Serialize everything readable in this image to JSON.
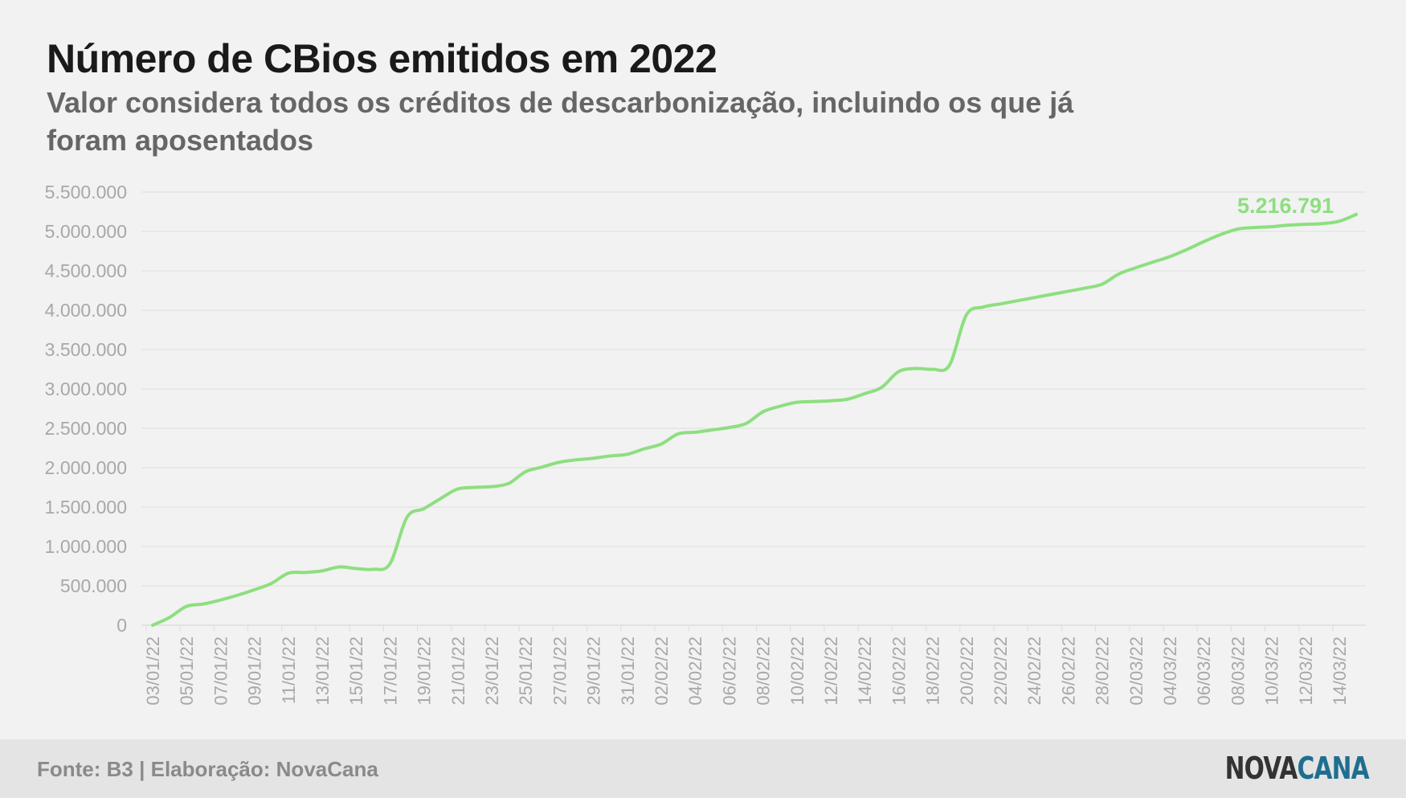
{
  "title": "Número de CBios emitidos em 2022",
  "subtitle": "Valor considera todos os créditos de descarbonização, incluindo os que já foram aposentados",
  "footer": {
    "source": "Fonte: B3 | Elaboração: NovaCana",
    "logo_part1": "NOVA",
    "logo_part2": "CANA"
  },
  "colors": {
    "line": "#8ddf7f",
    "grid": "#dedede",
    "axis_text": "#a8a8a8",
    "logo_dark": "#333333",
    "logo_accent": "#1e6f8f"
  },
  "chart_data": {
    "type": "line",
    "title": "Número de CBios emitidos em 2022",
    "ylim": [
      0,
      5500000
    ],
    "yticks": [
      0,
      500000,
      1000000,
      1500000,
      2000000,
      2500000,
      3000000,
      3500000,
      4000000,
      4500000,
      5000000,
      5500000
    ],
    "ytick_labels": [
      "0",
      "500.000",
      "1.000.000",
      "1.500.000",
      "2.000.000",
      "2.500.000",
      "3.000.000",
      "3.500.000",
      "4.000.000",
      "4.500.000",
      "5.000.000",
      "5.500.000"
    ],
    "xtick_labels": [
      "03/01/22",
      "05/01/22",
      "07/01/22",
      "09/01/22",
      "11/01/22",
      "13/01/22",
      "15/01/22",
      "17/01/22",
      "19/01/22",
      "21/01/22",
      "23/01/22",
      "25/01/22",
      "27/01/22",
      "29/01/22",
      "31/01/22",
      "02/02/22",
      "04/02/22",
      "06/02/22",
      "08/02/22",
      "10/02/22",
      "12/02/22",
      "14/02/22",
      "16/02/22",
      "18/02/22",
      "20/02/22",
      "22/02/22",
      "24/02/22",
      "26/02/22",
      "28/02/22",
      "02/03/22",
      "04/03/22",
      "06/03/22",
      "08/03/22",
      "10/03/22",
      "12/03/22",
      "14/03/22"
    ],
    "x": [
      "03/01/22",
      "04/01/22",
      "05/01/22",
      "06/01/22",
      "07/01/22",
      "08/01/22",
      "09/01/22",
      "10/01/22",
      "11/01/22",
      "12/01/22",
      "13/01/22",
      "14/01/22",
      "15/01/22",
      "16/01/22",
      "17/01/22",
      "18/01/22",
      "19/01/22",
      "20/01/22",
      "21/01/22",
      "22/01/22",
      "23/01/22",
      "24/01/22",
      "25/01/22",
      "26/01/22",
      "27/01/22",
      "28/01/22",
      "29/01/22",
      "30/01/22",
      "31/01/22",
      "01/02/22",
      "02/02/22",
      "03/02/22",
      "04/02/22",
      "05/02/22",
      "06/02/22",
      "07/02/22",
      "08/02/22",
      "09/02/22",
      "10/02/22",
      "11/02/22",
      "12/02/22",
      "13/02/22",
      "14/02/22",
      "15/02/22",
      "16/02/22",
      "17/02/22",
      "18/02/22",
      "19/02/22",
      "20/02/22",
      "21/02/22",
      "22/02/22",
      "23/02/22",
      "24/02/22",
      "25/02/22",
      "26/02/22",
      "27/02/22",
      "28/02/22",
      "01/03/22",
      "02/03/22",
      "03/03/22",
      "04/03/22",
      "05/03/22",
      "06/03/22",
      "07/03/22",
      "08/03/22",
      "09/03/22",
      "10/03/22",
      "11/03/22",
      "12/03/22",
      "13/03/22",
      "14/03/22",
      "15/03/22"
    ],
    "series": [
      {
        "values": [
          0,
          100000,
          240000,
          270000,
          320000,
          380000,
          450000,
          530000,
          660000,
          670000,
          690000,
          740000,
          720000,
          710000,
          780000,
          1370000,
          1480000,
          1610000,
          1730000,
          1750000,
          1760000,
          1800000,
          1950000,
          2010000,
          2070000,
          2100000,
          2120000,
          2150000,
          2170000,
          2240000,
          2300000,
          2430000,
          2450000,
          2480000,
          2510000,
          2560000,
          2710000,
          2780000,
          2830000,
          2840000,
          2850000,
          2870000,
          2940000,
          3020000,
          3220000,
          3260000,
          3250000,
          3300000,
          3940000,
          4040000,
          4080000,
          4120000,
          4160000,
          4200000,
          4240000,
          4280000,
          4330000,
          4460000,
          4540000,
          4610000,
          4680000,
          4770000,
          4870000,
          4960000,
          5030000,
          5050000,
          5060000,
          5080000,
          5090000,
          5100000,
          5130000,
          5216791
        ]
      }
    ],
    "annotation": {
      "text": "5.216.791",
      "point": "last"
    },
    "grid": true
  }
}
